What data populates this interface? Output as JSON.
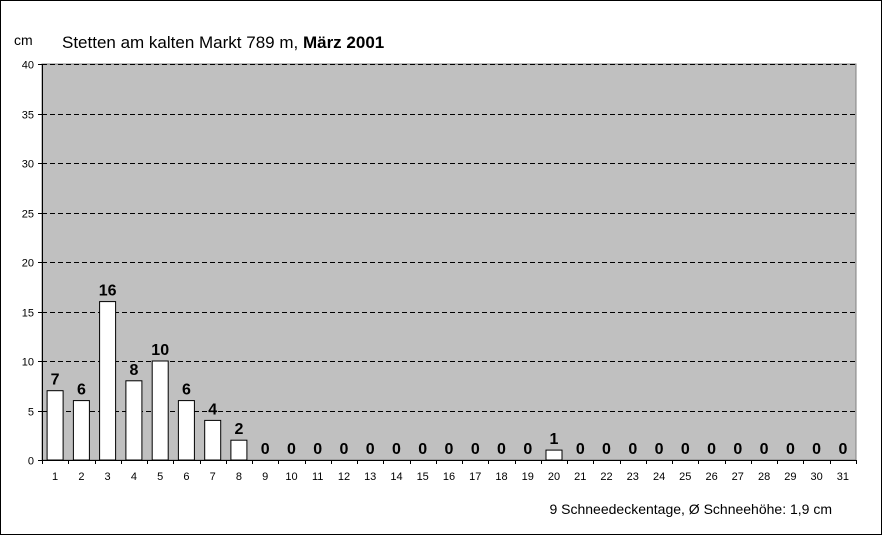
{
  "chart_data": {
    "type": "bar",
    "title": {
      "prefix": "Stetten am kalten Markt  789 m, ",
      "bold": "März 2001"
    },
    "ylabel": "cm",
    "ylim": [
      0,
      40
    ],
    "yticks": [
      0,
      5,
      10,
      15,
      20,
      25,
      30,
      35,
      40
    ],
    "categories": [
      "1",
      "2",
      "3",
      "4",
      "5",
      "6",
      "7",
      "8",
      "9",
      "10",
      "11",
      "12",
      "13",
      "14",
      "15",
      "16",
      "17",
      "18",
      "19",
      "20",
      "21",
      "22",
      "23",
      "24",
      "25",
      "26",
      "27",
      "28",
      "29",
      "30",
      "31"
    ],
    "values": [
      7,
      6,
      16,
      8,
      10,
      6,
      4,
      2,
      0,
      0,
      0,
      0,
      0,
      0,
      0,
      0,
      0,
      0,
      0,
      1,
      0,
      0,
      0,
      0,
      0,
      0,
      0,
      0,
      0,
      0,
      0
    ],
    "grid": true,
    "footer": "9 Schneedeckentage,  Ø  Schneehöhe:  1,9 cm",
    "colors": {
      "plot_bg": "#c0c0c0",
      "bar_fill": "#ffffff",
      "bar_stroke": "#000000",
      "grid": "#000000"
    }
  }
}
